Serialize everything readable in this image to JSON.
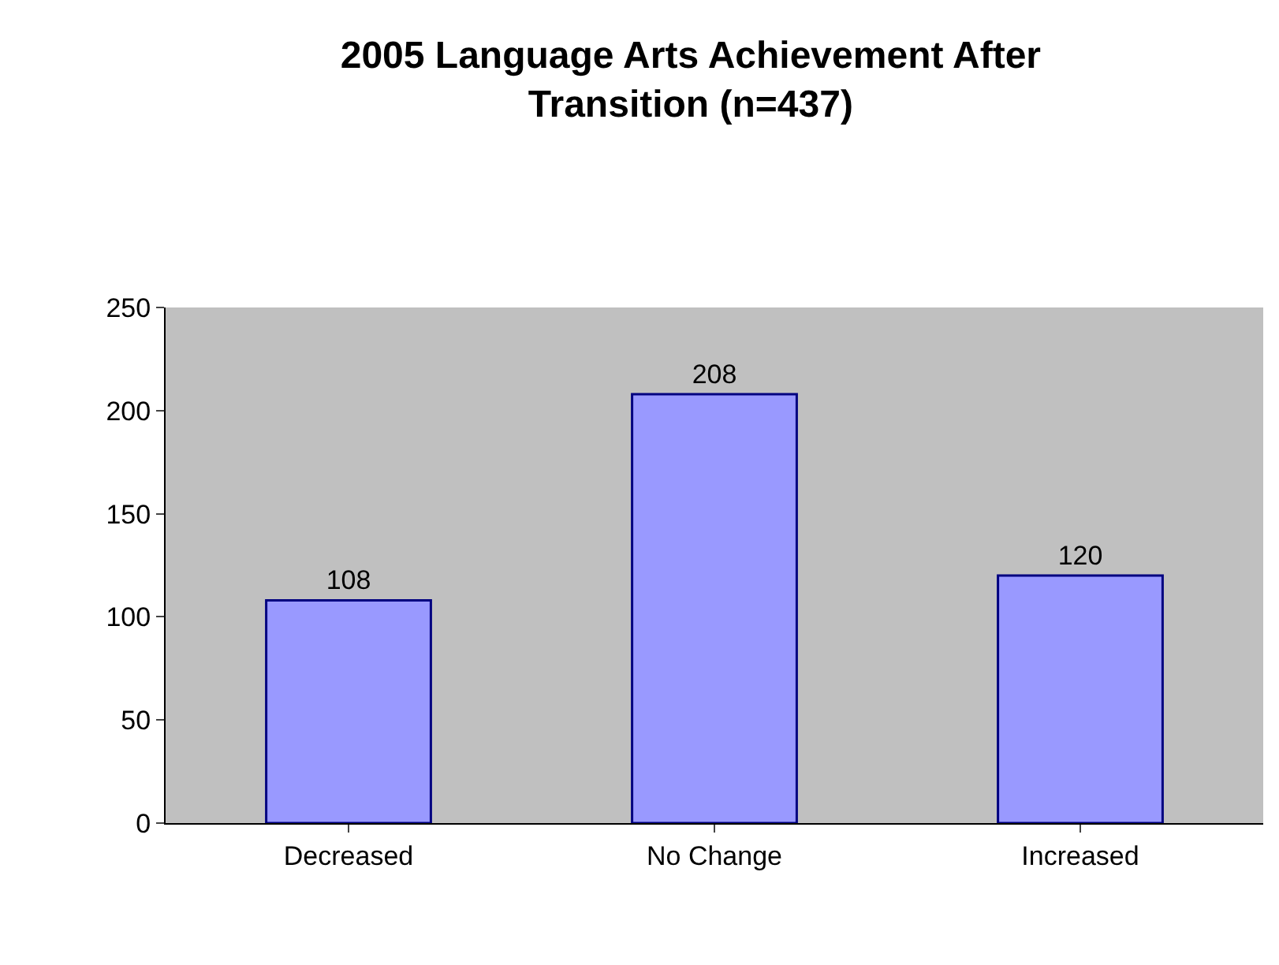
{
  "chart_data": {
    "type": "bar",
    "title": "2005 Language Arts Achievement After\nTransition (n=437)",
    "categories": [
      "Decreased",
      "No Change",
      "Increased"
    ],
    "values": [
      108,
      208,
      120
    ],
    "color": "#9999ff",
    "ylim": [
      0,
      250
    ],
    "yticks": [
      0,
      50,
      100,
      150,
      200,
      250
    ],
    "grid": false,
    "data_labels": true,
    "legend": false
  }
}
